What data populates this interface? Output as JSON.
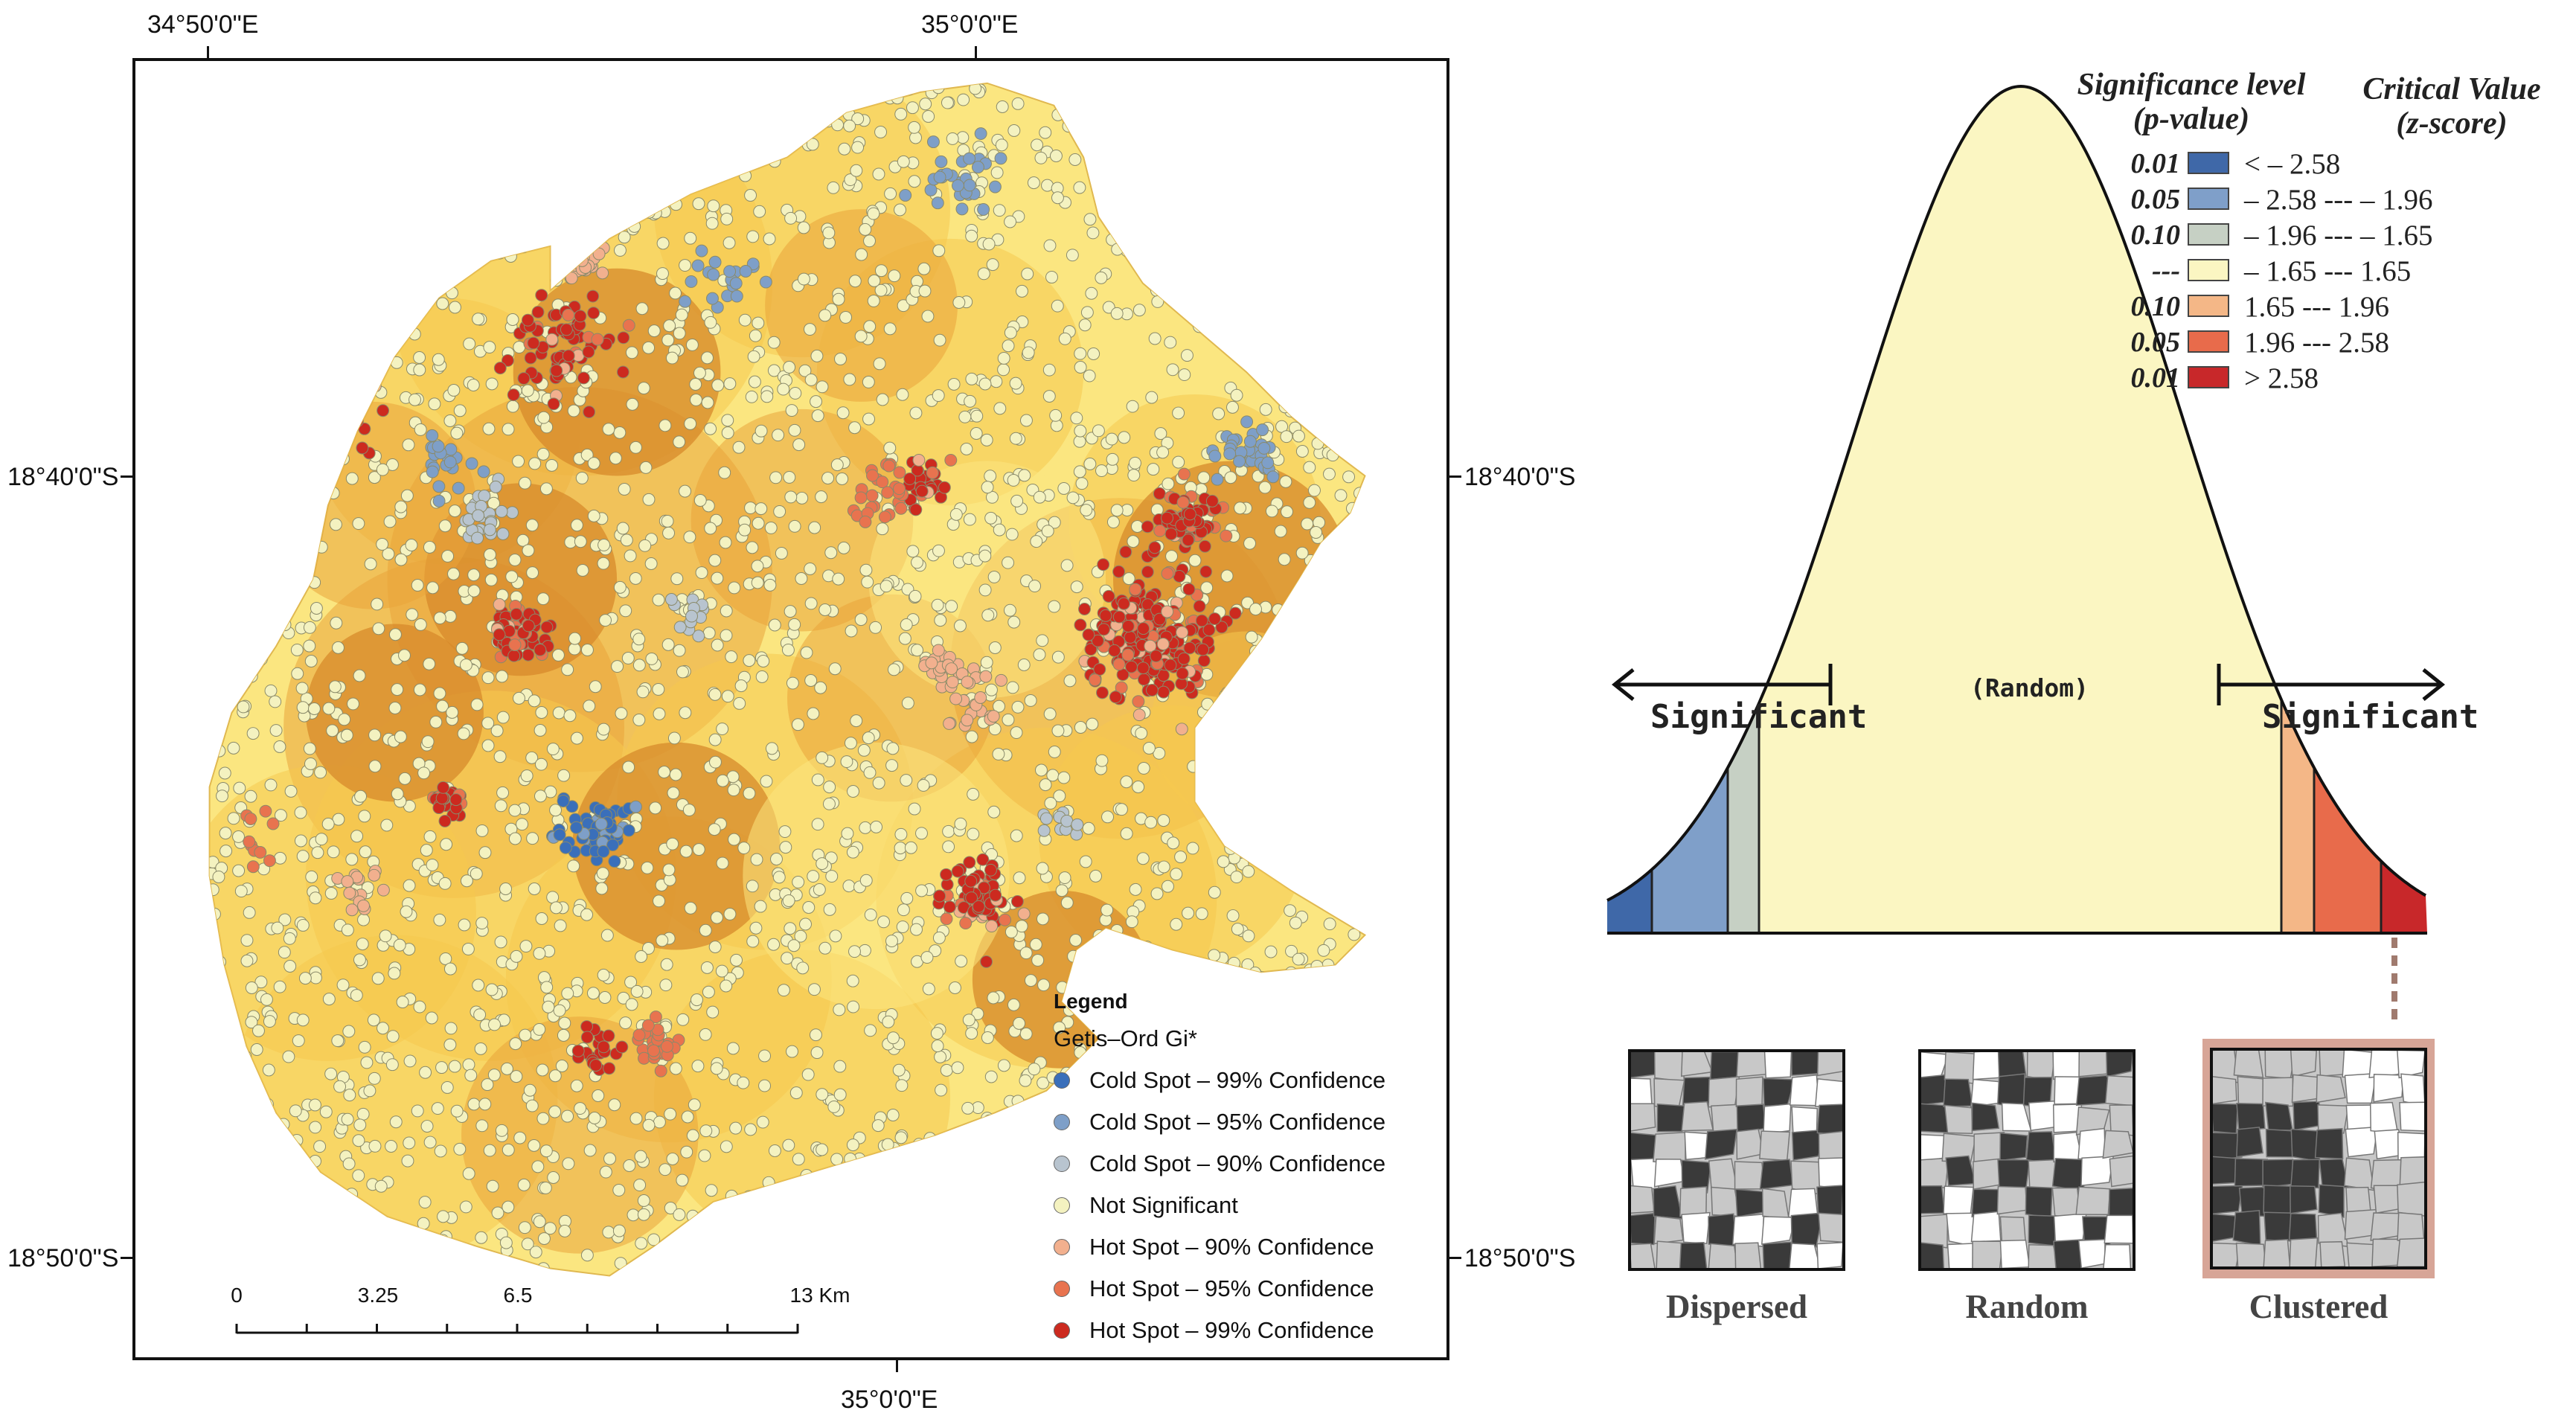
{
  "map": {
    "top_lon_labels": [
      "34°50'0\"E",
      "35°0'0\"E"
    ],
    "bottom_lon_label": "35°0'0\"E",
    "left_lat_labels": [
      "18°40'0\"S",
      "18°50'0\"S"
    ],
    "right_lat_labels": [
      "18°40'0\"S",
      "18°50'0\"S"
    ],
    "legend": {
      "title": "Legend",
      "subtitle": "Getis–Ord Gi*",
      "items": [
        {
          "label": "Cold Spot – 99% Confidence",
          "color": "#3a6fba"
        },
        {
          "label": "Cold Spot – 95% Confidence",
          "color": "#7e9fc8"
        },
        {
          "label": "Cold Spot – 90% Confidence",
          "color": "#b8c4cf"
        },
        {
          "label": "Not Significant",
          "color": "#f4f2c0"
        },
        {
          "label": "Hot Spot – 90% Confidence",
          "color": "#f2b08e"
        },
        {
          "label": "Hot Spot – 95% Confidence",
          "color": "#e8734f"
        },
        {
          "label": "Hot Spot – 99% Confidence",
          "color": "#cc2a1f"
        }
      ]
    },
    "scale_bar": {
      "labels": [
        "0",
        "3.25",
        "6.5",
        "13 Km"
      ]
    },
    "surface_colors": {
      "light": "#fbe680",
      "mid": "#f6c84e",
      "dark": "#e9a43a",
      "deep": "#d7892b"
    }
  },
  "curve": {
    "significant_left": "Significant",
    "significant_right": "Significant",
    "random_label": "(Random)",
    "table_header_p": [
      "Significance level",
      "(p-value)"
    ],
    "table_header_z": [
      "Critical Value",
      "(z-score)"
    ],
    "rows": [
      {
        "p": "0.01",
        "z": "< – 2.58",
        "color": "#3f68a8"
      },
      {
        "p": "0.05",
        "z": "– 2.58 --- – 1.96",
        "color": "#7f9fc9"
      },
      {
        "p": "0.10",
        "z": "– 1.96 --- – 1.65",
        "color": "#c6d0c4"
      },
      {
        "p": "---",
        "z": "– 1.65 --- 1.65",
        "color": "#fbf6c2"
      },
      {
        "p": "0.10",
        "z": "1.65 --- 1.96",
        "color": "#f4b787"
      },
      {
        "p": "0.05",
        "z": "1.96 --- 2.58",
        "color": "#e86b4b"
      },
      {
        "p": "0.01",
        "z": "> 2.58",
        "color": "#c8282a"
      }
    ],
    "patterns": [
      "Dispersed",
      "Random",
      "Clustered"
    ]
  }
}
